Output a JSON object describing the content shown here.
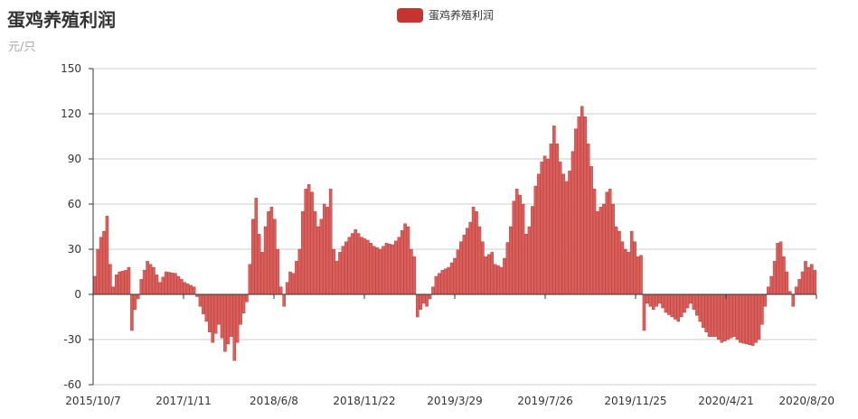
{
  "title": "蛋鸡养殖利润",
  "subtitle": "元/只",
  "legend": {
    "label": "蛋鸡养殖利润"
  },
  "colors": {
    "bar_fill": "#d95f5c",
    "bar_stroke": "#b8302c",
    "legend": "#c23531",
    "grid": "#cccccc",
    "axis": "#333333"
  },
  "chart_data": {
    "type": "bar",
    "series": [
      {
        "name": "蛋鸡养殖利润"
      }
    ],
    "ylim": [
      -60,
      150
    ],
    "yticks": [
      -60,
      -30,
      0,
      30,
      60,
      90,
      120,
      150
    ],
    "xtick_labels": [
      "2015/10/7",
      "2017/1/11",
      "2018/6/8",
      "2018/11/22",
      "2019/3/29",
      "2019/7/26",
      "2019/11/25",
      "2020/4/21",
      "2020/8/20"
    ],
    "profile": [
      [
        0,
        12
      ],
      [
        1,
        30
      ],
      [
        2,
        38
      ],
      [
        3,
        42
      ],
      [
        4,
        52
      ],
      [
        5,
        20
      ],
      [
        6,
        5
      ],
      [
        7,
        13
      ],
      [
        8,
        15
      ],
      [
        10,
        16
      ],
      [
        11,
        18
      ],
      [
        12,
        -24
      ],
      [
        13,
        -10
      ],
      [
        14,
        -3
      ],
      [
        15,
        10
      ],
      [
        17,
        22
      ],
      [
        19,
        18
      ],
      [
        21,
        8
      ],
      [
        23,
        15
      ],
      [
        26,
        14
      ],
      [
        29,
        8
      ],
      [
        32,
        5
      ],
      [
        34,
        -8
      ],
      [
        36,
        -18
      ],
      [
        38,
        -32
      ],
      [
        40,
        -20
      ],
      [
        42,
        -38
      ],
      [
        44,
        -28
      ],
      [
        45,
        -44
      ],
      [
        47,
        -20
      ],
      [
        49,
        -5
      ],
      [
        50,
        20
      ],
      [
        51,
        50
      ],
      [
        52,
        64
      ],
      [
        53,
        40
      ],
      [
        54,
        28
      ],
      [
        55,
        45
      ],
      [
        56,
        55
      ],
      [
        57,
        58
      ],
      [
        58,
        50
      ],
      [
        59,
        30
      ],
      [
        60,
        5
      ],
      [
        61,
        -8
      ],
      [
        62,
        8
      ],
      [
        63,
        15
      ],
      [
        64,
        14
      ],
      [
        66,
        30
      ],
      [
        67,
        55
      ],
      [
        68,
        70
      ],
      [
        69,
        73
      ],
      [
        70,
        68
      ],
      [
        71,
        55
      ],
      [
        72,
        45
      ],
      [
        73,
        50
      ],
      [
        74,
        60
      ],
      [
        75,
        58
      ],
      [
        76,
        70
      ],
      [
        77,
        30
      ],
      [
        78,
        22
      ],
      [
        79,
        28
      ],
      [
        80,
        32
      ],
      [
        82,
        38
      ],
      [
        84,
        43
      ],
      [
        86,
        38
      ],
      [
        88,
        36
      ],
      [
        90,
        32
      ],
      [
        92,
        30
      ],
      [
        94,
        34
      ],
      [
        96,
        33
      ],
      [
        98,
        38
      ],
      [
        100,
        47
      ],
      [
        101,
        45
      ],
      [
        102,
        30
      ],
      [
        103,
        25
      ],
      [
        104,
        -15
      ],
      [
        105,
        -10
      ],
      [
        106,
        -6
      ],
      [
        107,
        -8
      ],
      [
        108,
        -3
      ],
      [
        109,
        5
      ],
      [
        110,
        12
      ],
      [
        112,
        16
      ],
      [
        114,
        18
      ],
      [
        116,
        24
      ],
      [
        118,
        35
      ],
      [
        120,
        44
      ],
      [
        121,
        48
      ],
      [
        122,
        58
      ],
      [
        123,
        55
      ],
      [
        124,
        45
      ],
      [
        125,
        35
      ],
      [
        126,
        25
      ],
      [
        128,
        28
      ],
      [
        129,
        20
      ],
      [
        131,
        18
      ],
      [
        132,
        24
      ],
      [
        134,
        45
      ],
      [
        135,
        62
      ],
      [
        136,
        70
      ],
      [
        137,
        66
      ],
      [
        138,
        60
      ],
      [
        139,
        40
      ],
      [
        140,
        45
      ],
      [
        142,
        72
      ],
      [
        143,
        80
      ],
      [
        144,
        88
      ],
      [
        145,
        92
      ],
      [
        146,
        90
      ],
      [
        147,
        100
      ],
      [
        148,
        112
      ],
      [
        149,
        100
      ],
      [
        150,
        88
      ],
      [
        151,
        80
      ],
      [
        152,
        75
      ],
      [
        153,
        82
      ],
      [
        154,
        95
      ],
      [
        155,
        110
      ],
      [
        156,
        118
      ],
      [
        157,
        125
      ],
      [
        158,
        118
      ],
      [
        159,
        100
      ],
      [
        160,
        85
      ],
      [
        161,
        70
      ],
      [
        162,
        55
      ],
      [
        163,
        58
      ],
      [
        164,
        60
      ],
      [
        165,
        68
      ],
      [
        166,
        70
      ],
      [
        167,
        60
      ],
      [
        168,
        45
      ],
      [
        169,
        42
      ],
      [
        170,
        35
      ],
      [
        171,
        30
      ],
      [
        172,
        28
      ],
      [
        173,
        42
      ],
      [
        174,
        35
      ],
      [
        175,
        25
      ],
      [
        176,
        26
      ],
      [
        177,
        -24
      ],
      [
        178,
        -6
      ],
      [
        180,
        -10
      ],
      [
        182,
        -6
      ],
      [
        184,
        -12
      ],
      [
        186,
        -15
      ],
      [
        188,
        -18
      ],
      [
        190,
        -12
      ],
      [
        192,
        -6
      ],
      [
        194,
        -14
      ],
      [
        196,
        -22
      ],
      [
        198,
        -28
      ],
      [
        200,
        -28
      ],
      [
        202,
        -32
      ],
      [
        204,
        -30
      ],
      [
        206,
        -28
      ],
      [
        208,
        -32
      ],
      [
        210,
        -33
      ],
      [
        212,
        -34
      ],
      [
        214,
        -30
      ],
      [
        215,
        -20
      ],
      [
        216,
        -8
      ],
      [
        217,
        5
      ],
      [
        218,
        12
      ],
      [
        219,
        22
      ],
      [
        220,
        34
      ],
      [
        221,
        35
      ],
      [
        222,
        25
      ],
      [
        223,
        15
      ],
      [
        224,
        2
      ],
      [
        225,
        -8
      ],
      [
        226,
        5
      ],
      [
        227,
        10
      ],
      [
        228,
        15
      ],
      [
        229,
        22
      ],
      [
        230,
        18
      ],
      [
        231,
        20
      ],
      [
        232,
        16
      ]
    ]
  }
}
